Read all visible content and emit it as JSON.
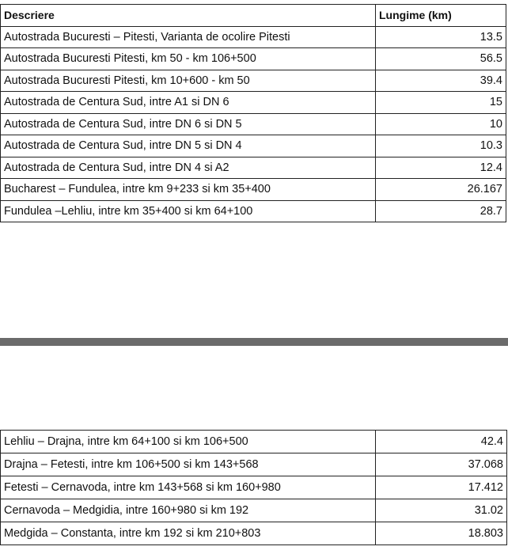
{
  "table_top": {
    "headers": [
      "Descriere",
      "Lungime (km)"
    ],
    "rows": [
      [
        "Autostrada Bucuresti – Pitesti, Varianta de ocolire Pitesti",
        "13.5"
      ],
      [
        "Autostrada Bucuresti Pitesti, km 50 - km 106+500",
        "56.5"
      ],
      [
        "Autostrada Bucuresti Pitesti, km 10+600 - km 50",
        "39.4"
      ],
      [
        "Autostrada de Centura Sud, intre A1 si DN 6",
        "15"
      ],
      [
        "Autostrada de Centura Sud, intre DN 6 si DN 5",
        "10"
      ],
      [
        "Autostrada de Centura Sud, intre DN 5 si DN 4",
        "10.3"
      ],
      [
        "Autostrada de Centura Sud, intre DN 4 si A2",
        "12.4"
      ],
      [
        "Bucharest – Fundulea, intre km 9+233 si km 35+400",
        "26.167"
      ],
      [
        "Fundulea –Lehliu, intre km 35+400 si km 64+100",
        "28.7"
      ]
    ]
  },
  "table_bottom": {
    "rows": [
      [
        "Lehliu – Drajna, intre km 64+100 si km 106+500",
        "42.4"
      ],
      [
        "Drajna – Fetesti, intre km 106+500 si km 143+568",
        "37.068"
      ],
      [
        "Fetesti – Cernavoda, intre km 143+568 si km 160+980",
        "17.412"
      ],
      [
        "Cernavoda – Medgidia, intre 160+980 si km 192",
        "31.02"
      ],
      [
        "Medgida – Constanta, intre km 192 si km 210+803",
        "18.803"
      ]
    ]
  }
}
